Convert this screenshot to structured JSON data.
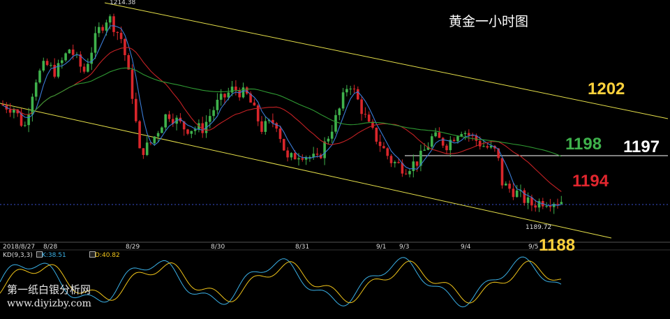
{
  "chart_data": {
    "type": "candlestick",
    "title": "黄金一小时图",
    "instrument_note": "gold 1-hour chart",
    "dates": [
      "2018/8/27",
      "8/28",
      "8/29",
      "8/30",
      "8/31",
      "9/1",
      "9/3",
      "9/4",
      "9/5"
    ],
    "price_range": [
      1186,
      1216
    ],
    "high_label": "1214.38",
    "low_label": "1189.72",
    "levels": [
      {
        "label": "1202",
        "value": 1202,
        "color": "#ffd23c"
      },
      {
        "label": "1198",
        "value": 1198,
        "color": "#3fb24c"
      },
      {
        "label": "1197",
        "value": 1197,
        "color": "#ffffff"
      },
      {
        "label": "1194",
        "value": 1194,
        "color": "#e0262e"
      },
      {
        "label": "1188",
        "value": 1188,
        "color": "#ffd23c"
      }
    ],
    "horizontal_line": {
      "value": 1197,
      "color": "#ffffff"
    },
    "channel": {
      "color": "#e6e04a",
      "note": "descending channel"
    },
    "moving_averages": [
      {
        "color": "#3a7bd5"
      },
      {
        "color": "#c42124"
      },
      {
        "color": "#2f9a33"
      }
    ],
    "indicator": {
      "name": "KD(9,3,3)",
      "k_label": "K:38.51",
      "d_label": "D:40.82",
      "k_color": "#3ab0e6",
      "d_color": "#f0c419"
    },
    "up_color": "#3fb24c",
    "down_color": "#d9262b"
  },
  "watermark": {
    "line1": "第一纸白银分析网",
    "line2": "www.diyizby.com"
  }
}
